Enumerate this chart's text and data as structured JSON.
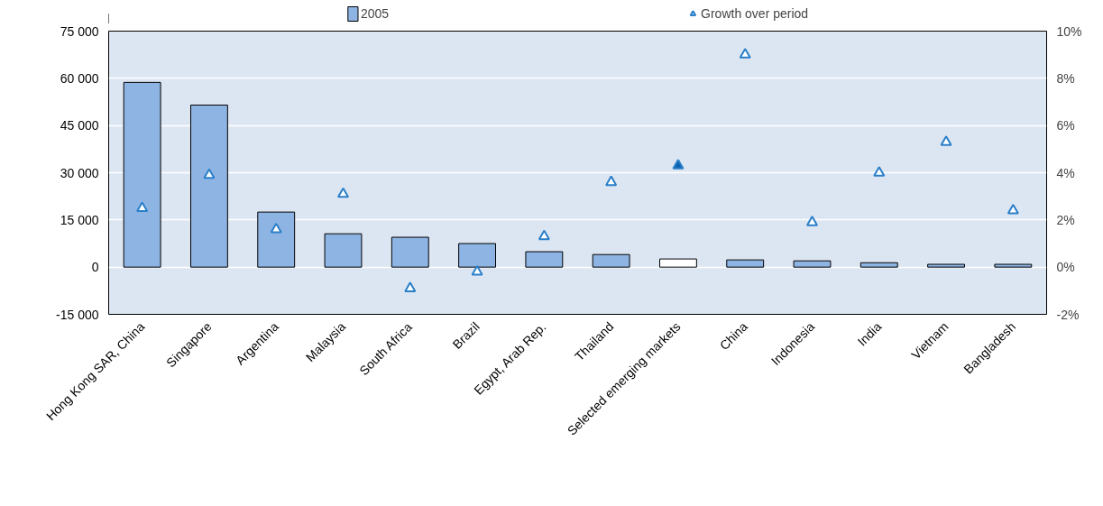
{
  "chart_data": {
    "type": "bar",
    "categories": [
      "Hong Kong SAR, China",
      "Singapore",
      "Argentina",
      "Malaysia",
      "South Africa",
      "Brazil",
      "Egypt, Arab Rep.",
      "Thailand",
      "Selected emerging markets",
      "China",
      "Indonesia",
      "India",
      "Vietnam",
      "Bangladesh"
    ],
    "series": [
      {
        "name": "2005",
        "color": "#8eb4e3",
        "colors": [
          "#8eb4e3",
          "#8eb4e3",
          "#8eb4e3",
          "#8eb4e3",
          "#8eb4e3",
          "#8eb4e3",
          "#8eb4e3",
          "#8eb4e3",
          "#ffffff",
          "#8eb4e3",
          "#8eb4e3",
          "#8eb4e3",
          "#8eb4e3",
          "#8eb4e3"
        ],
        "values": [
          58700,
          51500,
          17500,
          10600,
          9500,
          7500,
          4900,
          4000,
          2600,
          2300,
          2000,
          1400,
          900,
          900
        ]
      },
      {
        "name": "Growth over period",
        "type": "scatter",
        "axis": "y2",
        "marker": "triangle",
        "color": "#2a7fc9",
        "colors": [
          "#ffffff",
          "#ffffff",
          "#ffffff",
          "#ffffff",
          "#ffffff",
          "#ffffff",
          "#ffffff",
          "#ffffff",
          "#0b62b0",
          "#ffffff",
          "#ffffff",
          "#ffffff",
          "#ffffff",
          "#ffffff"
        ],
        "values": [
          2.5,
          3.9,
          1.6,
          3.1,
          -0.9,
          -0.2,
          1.3,
          3.6,
          4.3,
          9.0,
          1.9,
          4.0,
          5.3,
          2.4
        ]
      }
    ],
    "ylim": [
      -15000,
      75000
    ],
    "yticks": [
      {
        "value": -15000,
        "label": "-15 000"
      },
      0,
      {
        "value": 15000,
        "label": "15 000"
      },
      {
        "value": 30000,
        "label": "30 000"
      },
      {
        "value": 45000,
        "label": "45 000"
      },
      {
        "value": 60000,
        "label": "60 000"
      },
      {
        "value": 75000,
        "label": "75 000"
      }
    ],
    "y2lim": [
      -2,
      10
    ],
    "y2ticks": [
      {
        "value": -2,
        "label": "-2%"
      },
      {
        "value": 0,
        "label": "0%"
      },
      {
        "value": 2,
        "label": "2%"
      },
      {
        "value": 4,
        "label": "4%"
      },
      {
        "value": 6,
        "label": "6%"
      },
      {
        "value": 8,
        "label": "8%"
      },
      {
        "value": 10,
        "label": "10%"
      }
    ],
    "grid": "y",
    "legend": "top"
  }
}
